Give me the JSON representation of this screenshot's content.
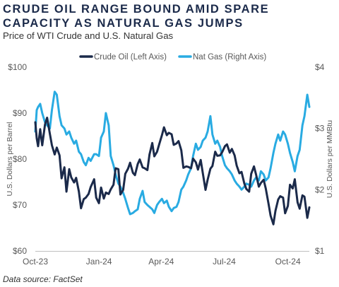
{
  "header": {
    "title": "CRUDE OIL RANGE BOUND AMID SPARE CAPACITY AS NATURAL GAS JUMPS",
    "subtitle": "Price of WTI Crude and U.S. Natural Gas"
  },
  "footer": {
    "source": "Data source: FactSet"
  },
  "chart_data": {
    "type": "line",
    "title": "CRUDE OIL RANGE BOUND AMID SPARE CAPACITY AS NATURAL GAS JUMPS",
    "subtitle": "Price of WTI Crude and U.S. Natural Gas",
    "x_type": "date",
    "x_range": [
      "2023-10-02",
      "2024-11-01"
    ],
    "x_ticks": [
      "Oct-23",
      "Jan-24",
      "Apr-24",
      "Jul-24",
      "Oct-24"
    ],
    "left_axis": {
      "label": "U.S. Dollars per Barrel",
      "range": [
        60,
        100
      ],
      "ticks": [
        "$60",
        "$70",
        "$80",
        "$90",
        "$100"
      ]
    },
    "right_axis": {
      "label": "U.S. Dollars per MMBtu",
      "range": [
        1,
        4
      ],
      "ticks": [
        "$1",
        "$2",
        "$3",
        "$4"
      ]
    },
    "grid": false,
    "legend": {
      "position": "top",
      "entries": [
        "Crude Oil (Left Axis)",
        "Nat Gas (Right Axis)"
      ]
    },
    "series": [
      {
        "name": "Crude Oil (Left Axis)",
        "axis": "left",
        "color": "#1b2a4a",
        "points": [
          [
            "2023-10-02",
            88.0
          ],
          [
            "2023-10-04",
            84.5
          ],
          [
            "2023-10-06",
            82.8
          ],
          [
            "2023-10-09",
            86.5
          ],
          [
            "2023-10-12",
            83.0
          ],
          [
            "2023-10-16",
            87.5
          ],
          [
            "2023-10-19",
            89.0
          ],
          [
            "2023-10-23",
            85.5
          ],
          [
            "2023-10-26",
            83.0
          ],
          [
            "2023-10-30",
            81.0
          ],
          [
            "2023-11-02",
            82.5
          ],
          [
            "2023-11-06",
            80.8
          ],
          [
            "2023-11-09",
            75.8
          ],
          [
            "2023-11-13",
            78.2
          ],
          [
            "2023-11-16",
            72.9
          ],
          [
            "2023-11-20",
            77.8
          ],
          [
            "2023-11-23",
            76.0
          ],
          [
            "2023-11-27",
            74.9
          ],
          [
            "2023-11-30",
            75.9
          ],
          [
            "2023-12-04",
            72.9
          ],
          [
            "2023-12-07",
            69.3
          ],
          [
            "2023-12-11",
            71.3
          ],
          [
            "2023-12-14",
            71.6
          ],
          [
            "2023-12-18",
            72.4
          ],
          [
            "2023-12-21",
            73.9
          ],
          [
            "2023-12-26",
            75.6
          ],
          [
            "2023-12-29",
            71.6
          ],
          [
            "2024-01-02",
            70.4
          ],
          [
            "2024-01-05",
            73.8
          ],
          [
            "2024-01-09",
            71.4
          ],
          [
            "2024-01-12",
            72.7
          ],
          [
            "2024-01-16",
            72.4
          ],
          [
            "2024-01-19",
            73.4
          ],
          [
            "2024-01-23",
            74.4
          ],
          [
            "2024-01-26",
            78.0
          ],
          [
            "2024-01-30",
            77.8
          ],
          [
            "2024-02-02",
            72.3
          ],
          [
            "2024-02-06",
            73.3
          ],
          [
            "2024-02-09",
            76.8
          ],
          [
            "2024-02-13",
            77.9
          ],
          [
            "2024-02-16",
            79.2
          ],
          [
            "2024-02-20",
            77.0
          ],
          [
            "2024-02-23",
            76.5
          ],
          [
            "2024-02-27",
            78.9
          ],
          [
            "2024-03-01",
            79.9
          ],
          [
            "2024-03-05",
            78.2
          ],
          [
            "2024-03-08",
            78.0
          ],
          [
            "2024-03-12",
            77.6
          ],
          [
            "2024-03-15",
            81.0
          ],
          [
            "2024-03-19",
            83.5
          ],
          [
            "2024-03-22",
            80.6
          ],
          [
            "2024-03-26",
            81.6
          ],
          [
            "2024-03-29",
            83.2
          ],
          [
            "2024-04-02",
            85.2
          ],
          [
            "2024-04-05",
            86.9
          ],
          [
            "2024-04-09",
            85.2
          ],
          [
            "2024-04-12",
            85.7
          ],
          [
            "2024-04-16",
            85.4
          ],
          [
            "2024-04-19",
            83.1
          ],
          [
            "2024-04-23",
            83.4
          ],
          [
            "2024-04-26",
            83.9
          ],
          [
            "2024-04-30",
            81.9
          ],
          [
            "2024-05-03",
            78.1
          ],
          [
            "2024-05-07",
            78.4
          ],
          [
            "2024-05-10",
            78.3
          ],
          [
            "2024-05-14",
            78.0
          ],
          [
            "2024-05-17",
            80.1
          ],
          [
            "2024-05-21",
            79.3
          ],
          [
            "2024-05-24",
            77.7
          ],
          [
            "2024-05-28",
            79.8
          ],
          [
            "2024-05-31",
            77.0
          ],
          [
            "2024-06-04",
            73.3
          ],
          [
            "2024-06-07",
            75.5
          ],
          [
            "2024-06-11",
            77.9
          ],
          [
            "2024-06-14",
            78.5
          ],
          [
            "2024-06-18",
            81.6
          ],
          [
            "2024-06-21",
            80.7
          ],
          [
            "2024-06-25",
            80.8
          ],
          [
            "2024-06-28",
            81.5
          ],
          [
            "2024-07-02",
            82.8
          ],
          [
            "2024-07-05",
            83.2
          ],
          [
            "2024-07-09",
            81.4
          ],
          [
            "2024-07-12",
            82.2
          ],
          [
            "2024-07-16",
            80.8
          ],
          [
            "2024-07-19",
            78.6
          ],
          [
            "2024-07-23",
            76.9
          ],
          [
            "2024-07-26",
            77.2
          ],
          [
            "2024-07-30",
            74.7
          ],
          [
            "2024-08-02",
            73.5
          ],
          [
            "2024-08-06",
            72.9
          ],
          [
            "2024-08-09",
            76.8
          ],
          [
            "2024-08-13",
            78.4
          ],
          [
            "2024-08-16",
            76.6
          ],
          [
            "2024-08-20",
            74.0
          ],
          [
            "2024-08-23",
            74.8
          ],
          [
            "2024-08-27",
            75.5
          ],
          [
            "2024-08-30",
            73.6
          ],
          [
            "2024-09-03",
            70.3
          ],
          [
            "2024-09-06",
            67.7
          ],
          [
            "2024-09-10",
            65.8
          ],
          [
            "2024-09-13",
            68.7
          ],
          [
            "2024-09-17",
            71.2
          ],
          [
            "2024-09-20",
            71.9
          ],
          [
            "2024-09-24",
            71.6
          ],
          [
            "2024-09-27",
            68.2
          ],
          [
            "2024-10-01",
            69.8
          ],
          [
            "2024-10-04",
            74.4
          ],
          [
            "2024-10-08",
            73.6
          ],
          [
            "2024-10-11",
            75.6
          ],
          [
            "2024-10-15",
            70.6
          ],
          [
            "2024-10-18",
            69.2
          ],
          [
            "2024-10-22",
            72.1
          ],
          [
            "2024-10-25",
            71.8
          ],
          [
            "2024-10-29",
            67.2
          ],
          [
            "2024-11-01",
            69.5
          ]
        ]
      },
      {
        "name": "Nat Gas (Right Axis)",
        "axis": "right",
        "color": "#29abe2",
        "points": [
          [
            "2023-10-02",
            2.95
          ],
          [
            "2023-10-04",
            3.3
          ],
          [
            "2023-10-06",
            3.35
          ],
          [
            "2023-10-09",
            3.4
          ],
          [
            "2023-10-12",
            3.25
          ],
          [
            "2023-10-16",
            3.1
          ],
          [
            "2023-10-19",
            3.05
          ],
          [
            "2023-10-23",
            3.0
          ],
          [
            "2023-10-26",
            3.3
          ],
          [
            "2023-10-30",
            3.6
          ],
          [
            "2023-11-02",
            3.55
          ],
          [
            "2023-11-06",
            3.2
          ],
          [
            "2023-11-09",
            3.05
          ],
          [
            "2023-11-13",
            3.0
          ],
          [
            "2023-11-16",
            2.9
          ],
          [
            "2023-11-20",
            2.95
          ],
          [
            "2023-11-23",
            2.85
          ],
          [
            "2023-11-27",
            2.75
          ],
          [
            "2023-11-30",
            2.8
          ],
          [
            "2023-12-04",
            2.62
          ],
          [
            "2023-12-07",
            2.58
          ],
          [
            "2023-12-11",
            2.45
          ],
          [
            "2023-12-14",
            2.4
          ],
          [
            "2023-12-18",
            2.52
          ],
          [
            "2023-12-21",
            2.47
          ],
          [
            "2023-12-26",
            2.58
          ],
          [
            "2023-12-29",
            2.58
          ],
          [
            "2024-01-02",
            2.55
          ],
          [
            "2024-01-05",
            2.85
          ],
          [
            "2024-01-09",
            2.95
          ],
          [
            "2024-01-12",
            3.25
          ],
          [
            "2024-01-16",
            3.05
          ],
          [
            "2024-01-19",
            2.55
          ],
          [
            "2024-01-23",
            2.4
          ],
          [
            "2024-01-26",
            2.25
          ],
          [
            "2024-01-30",
            2.1
          ],
          [
            "2024-02-02",
            2.05
          ],
          [
            "2024-02-06",
            1.95
          ],
          [
            "2024-02-09",
            1.85
          ],
          [
            "2024-02-13",
            1.7
          ],
          [
            "2024-02-16",
            1.6
          ],
          [
            "2024-02-20",
            1.62
          ],
          [
            "2024-02-23",
            1.65
          ],
          [
            "2024-02-27",
            1.68
          ],
          [
            "2024-03-01",
            1.85
          ],
          [
            "2024-03-05",
            1.98
          ],
          [
            "2024-03-08",
            1.8
          ],
          [
            "2024-03-12",
            1.75
          ],
          [
            "2024-03-15",
            1.72
          ],
          [
            "2024-03-19",
            1.68
          ],
          [
            "2024-03-22",
            1.62
          ],
          [
            "2024-03-26",
            1.75
          ],
          [
            "2024-03-29",
            1.8
          ],
          [
            "2024-04-02",
            1.85
          ],
          [
            "2024-04-05",
            1.78
          ],
          [
            "2024-04-09",
            1.82
          ],
          [
            "2024-04-12",
            1.72
          ],
          [
            "2024-04-16",
            1.65
          ],
          [
            "2024-04-19",
            1.7
          ],
          [
            "2024-04-23",
            1.72
          ],
          [
            "2024-04-26",
            1.8
          ],
          [
            "2024-04-30",
            2.0
          ],
          [
            "2024-05-03",
            2.05
          ],
          [
            "2024-05-07",
            2.15
          ],
          [
            "2024-05-10",
            2.25
          ],
          [
            "2024-05-14",
            2.35
          ],
          [
            "2024-05-17",
            2.55
          ],
          [
            "2024-05-21",
            2.75
          ],
          [
            "2024-05-24",
            2.65
          ],
          [
            "2024-05-28",
            2.7
          ],
          [
            "2024-05-31",
            2.8
          ],
          [
            "2024-06-04",
            2.85
          ],
          [
            "2024-06-07",
            2.95
          ],
          [
            "2024-06-11",
            3.2
          ],
          [
            "2024-06-14",
            2.9
          ],
          [
            "2024-06-18",
            2.75
          ],
          [
            "2024-06-21",
            2.8
          ],
          [
            "2024-06-25",
            2.7
          ],
          [
            "2024-06-28",
            2.55
          ],
          [
            "2024-07-02",
            2.4
          ],
          [
            "2024-07-05",
            2.35
          ],
          [
            "2024-07-09",
            2.3
          ],
          [
            "2024-07-12",
            2.25
          ],
          [
            "2024-07-16",
            2.15
          ],
          [
            "2024-07-19",
            2.1
          ],
          [
            "2024-07-23",
            2.05
          ],
          [
            "2024-07-26",
            2.0
          ],
          [
            "2024-07-30",
            2.05
          ],
          [
            "2024-08-02",
            2.1
          ],
          [
            "2024-08-06",
            2.08
          ],
          [
            "2024-08-09",
            2.05
          ],
          [
            "2024-08-13",
            2.15
          ],
          [
            "2024-08-16",
            2.2
          ],
          [
            "2024-08-20",
            2.15
          ],
          [
            "2024-08-23",
            2.3
          ],
          [
            "2024-08-27",
            2.25
          ],
          [
            "2024-08-30",
            2.15
          ],
          [
            "2024-09-03",
            2.2
          ],
          [
            "2024-09-06",
            2.35
          ],
          [
            "2024-09-10",
            2.6
          ],
          [
            "2024-09-13",
            2.75
          ],
          [
            "2024-09-17",
            2.9
          ],
          [
            "2024-09-20",
            2.8
          ],
          [
            "2024-09-24",
            2.95
          ],
          [
            "2024-09-27",
            2.9
          ],
          [
            "2024-10-01",
            2.75
          ],
          [
            "2024-10-04",
            2.6
          ],
          [
            "2024-10-08",
            2.45
          ],
          [
            "2024-10-11",
            2.3
          ],
          [
            "2024-10-15",
            2.55
          ],
          [
            "2024-10-18",
            2.65
          ],
          [
            "2024-10-22",
            3.05
          ],
          [
            "2024-10-25",
            3.2
          ],
          [
            "2024-10-29",
            3.55
          ],
          [
            "2024-11-01",
            3.35
          ]
        ]
      }
    ]
  }
}
